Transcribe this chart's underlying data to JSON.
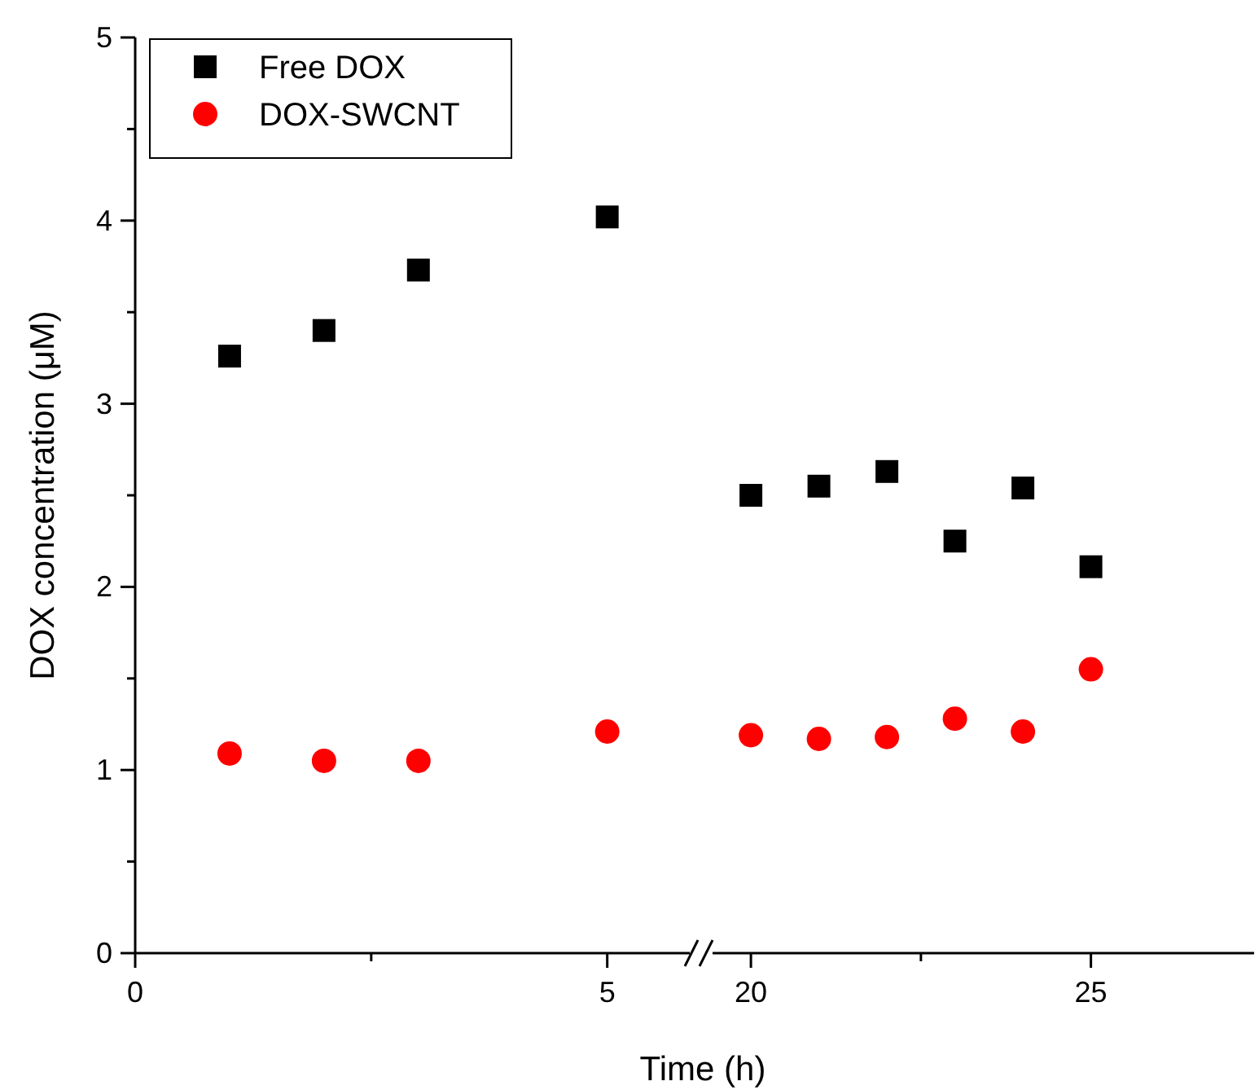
{
  "chart_data": [
    {
      "type": "scatter",
      "ylabel": "DOX concentration (μM)",
      "xlabel": "Time (h)",
      "x": [
        1,
        2,
        3,
        5
      ],
      "xlim": [
        0,
        5.9
      ],
      "xticks": [
        0,
        {
          "value": 2.5,
          "label": null
        },
        5
      ],
      "ylim": [
        0,
        5
      ],
      "yticks": [
        0,
        {
          "value": 0.5,
          "label": null
        },
        1,
        {
          "value": 1.5,
          "label": null
        },
        2,
        {
          "value": 2.5,
          "label": null
        },
        3,
        {
          "value": 3.5,
          "label": null
        },
        4,
        {
          "value": 4.5,
          "label": null
        },
        5
      ],
      "legend": "top left",
      "grid": false,
      "series": [
        {
          "name": "Free DOX",
          "color": "#000000",
          "marker": "square",
          "values": [
            3.26,
            3.4,
            3.73,
            4.02
          ]
        },
        {
          "name": "DOX-SWCNT",
          "color": "#ff0000",
          "marker": "circle",
          "values": [
            1.09,
            1.05,
            1.05,
            1.21
          ]
        }
      ]
    },
    {
      "type": "scatter",
      "x": [
        20,
        21,
        22,
        23,
        24,
        25
      ],
      "xlim": [
        19.4,
        27.4
      ],
      "xticks": [
        20,
        {
          "value": 22.5,
          "label": null
        },
        25
      ],
      "ylim": [
        0,
        5
      ],
      "tick_labels": "x",
      "grid": false,
      "series": [
        {
          "color": "#000000",
          "marker": "square",
          "values": [
            2.5,
            2.55,
            2.63,
            2.25,
            2.54,
            2.11
          ]
        },
        {
          "color": "#ff0000",
          "marker": "circle",
          "values": [
            1.19,
            1.17,
            1.18,
            1.28,
            1.21,
            1.55
          ]
        }
      ]
    }
  ]
}
